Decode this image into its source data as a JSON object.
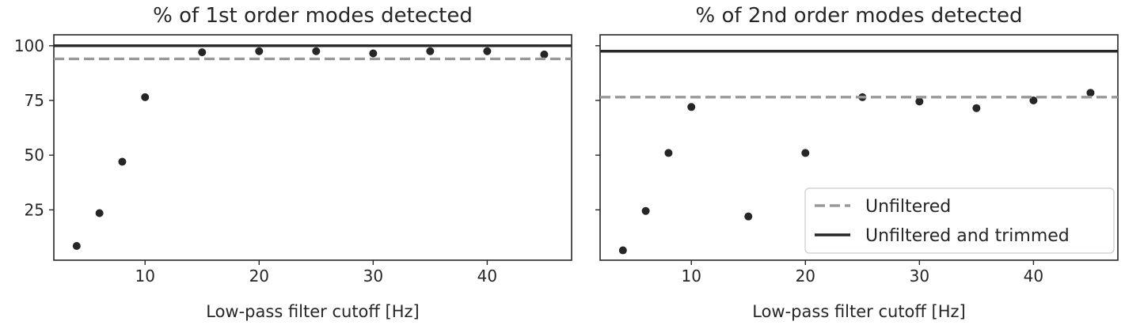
{
  "chart_data": [
    {
      "type": "scatter",
      "title": "% of 1st order modes detected",
      "xlabel": "Low-pass filter cutoff [Hz]",
      "ylabel": "",
      "xlim": [
        2,
        47.4
      ],
      "ylim": [
        2,
        105
      ],
      "xticks": [
        10,
        20,
        30,
        40
      ],
      "yticks": [
        25,
        50,
        75,
        100
      ],
      "grid": false,
      "series": [
        {
          "kind": "points",
          "color": "#262626",
          "x": [
            4,
            6,
            8,
            10,
            15,
            20,
            25,
            30,
            35,
            40,
            45
          ],
          "y": [
            8.5,
            23.5,
            47,
            76.5,
            97,
            97.5,
            97.5,
            96.5,
            97.5,
            97.5,
            96
          ]
        },
        {
          "kind": "hline",
          "name": "Unfiltered",
          "y": 94,
          "style": "dashed",
          "color": "#999999"
        },
        {
          "kind": "hline",
          "name": "Unfiltered and trimmed",
          "y": 100,
          "style": "solid",
          "color": "#262626"
        }
      ]
    },
    {
      "type": "scatter",
      "title": "% of 2nd order modes detected",
      "xlabel": "Low-pass filter cutoff [Hz]",
      "ylabel": "",
      "xlim": [
        2,
        47.4
      ],
      "ylim": [
        2,
        105
      ],
      "xticks": [
        10,
        20,
        30,
        40
      ],
      "yticks": [
        25,
        50,
        75,
        100
      ],
      "show_ytick_labels": false,
      "grid": false,
      "legend": {
        "position": "lower-right",
        "entries": [
          "Unfiltered",
          "Unfiltered and trimmed"
        ]
      },
      "series": [
        {
          "kind": "points",
          "color": "#262626",
          "x": [
            4,
            6,
            8,
            10,
            15,
            20,
            25,
            30,
            35,
            40,
            45
          ],
          "y": [
            6.5,
            24.5,
            51,
            72,
            22,
            51,
            76.5,
            74.5,
            71.5,
            75,
            78.5
          ]
        },
        {
          "kind": "hline",
          "name": "Unfiltered",
          "y": 76.5,
          "style": "dashed",
          "color": "#999999"
        },
        {
          "kind": "hline",
          "name": "Unfiltered and trimmed",
          "y": 97.5,
          "style": "solid",
          "color": "#262626"
        }
      ]
    }
  ]
}
